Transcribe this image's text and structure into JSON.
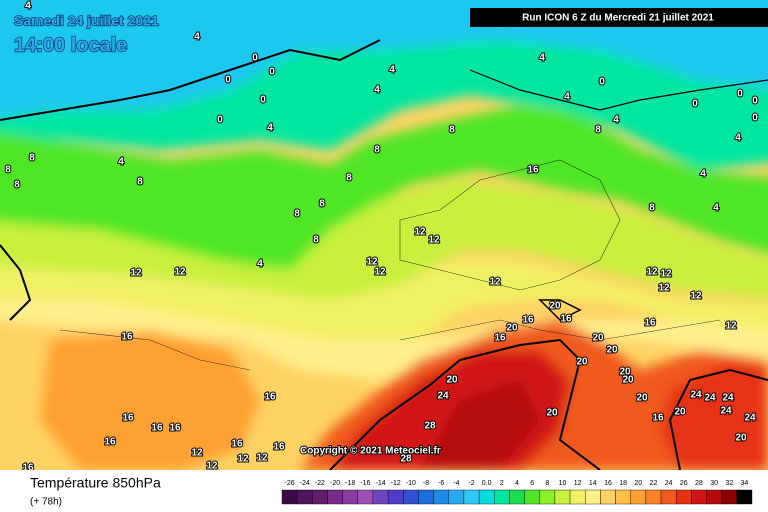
{
  "header": {
    "date": "Samedi 24 juillet 2021",
    "time": "14:00 locale",
    "run": "Run ICON 6 Z du Mercredi 21 juillet 2021"
  },
  "copyright": "Copyright © 2021 Meteociel.fr",
  "footer": {
    "title": "Température 850hPa",
    "lead": "(+ 78h)"
  },
  "contour_labels": [
    4,
    4,
    0,
    0,
    0,
    0,
    0,
    4,
    4,
    4,
    0,
    0,
    0,
    0,
    0,
    4,
    4,
    8,
    8,
    8,
    4,
    4,
    8,
    8,
    8,
    4,
    8,
    8,
    16,
    4,
    8,
    8,
    4,
    8,
    8,
    12,
    12,
    4,
    12,
    12,
    12,
    12,
    12,
    12,
    12,
    12,
    12,
    20,
    16,
    20,
    16,
    16,
    16,
    12,
    16,
    20,
    20,
    20,
    20,
    24,
    20,
    20,
    24,
    24,
    24,
    20,
    24,
    20,
    16,
    16,
    16,
    16,
    20,
    16,
    28,
    24,
    20,
    16,
    16,
    16,
    12,
    12,
    12,
    12,
    28,
    16
  ],
  "colorbar": [
    {
      "label": -26,
      "color": "#3c0a46"
    },
    {
      "label": -24,
      "color": "#50145a"
    },
    {
      "label": -22,
      "color": "#641e6e"
    },
    {
      "label": -20,
      "color": "#7a2a88"
    },
    {
      "label": -18,
      "color": "#8c3ca0"
    },
    {
      "label": -16,
      "color": "#a050b4"
    },
    {
      "label": -14,
      "color": "#6e46be"
    },
    {
      "label": -12,
      "color": "#503cc8"
    },
    {
      "label": -10,
      "color": "#3250d2"
    },
    {
      "label": -8,
      "color": "#1e6edc"
    },
    {
      "label": -6,
      "color": "#1e8ce6"
    },
    {
      "label": -4,
      "color": "#28aaf0"
    },
    {
      "label": -2,
      "color": "#32c8f5"
    },
    {
      "label": "0.0",
      "color": "#00dcdc"
    },
    {
      "label": 2,
      "color": "#00e6a0"
    },
    {
      "label": 4,
      "color": "#1edc50"
    },
    {
      "label": 6,
      "color": "#50e628"
    },
    {
      "label": 8,
      "color": "#8cf028"
    },
    {
      "label": 10,
      "color": "#c8f03c"
    },
    {
      "label": 12,
      "color": "#f0f064"
    },
    {
      "label": 14,
      "color": "#fff08c"
    },
    {
      "label": 16,
      "color": "#ffd264"
    },
    {
      "label": 18,
      "color": "#ffbe46"
    },
    {
      "label": 20,
      "color": "#ffa032"
    },
    {
      "label": 22,
      "color": "#ff8228"
    },
    {
      "label": 24,
      "color": "#f05a1e"
    },
    {
      "label": 26,
      "color": "#e63214"
    },
    {
      "label": 28,
      "color": "#d21414"
    },
    {
      "label": 30,
      "color": "#b40a0a"
    },
    {
      "label": 32,
      "color": "#8c0000"
    },
    {
      "label": 34,
      "color": "#000000"
    }
  ]
}
